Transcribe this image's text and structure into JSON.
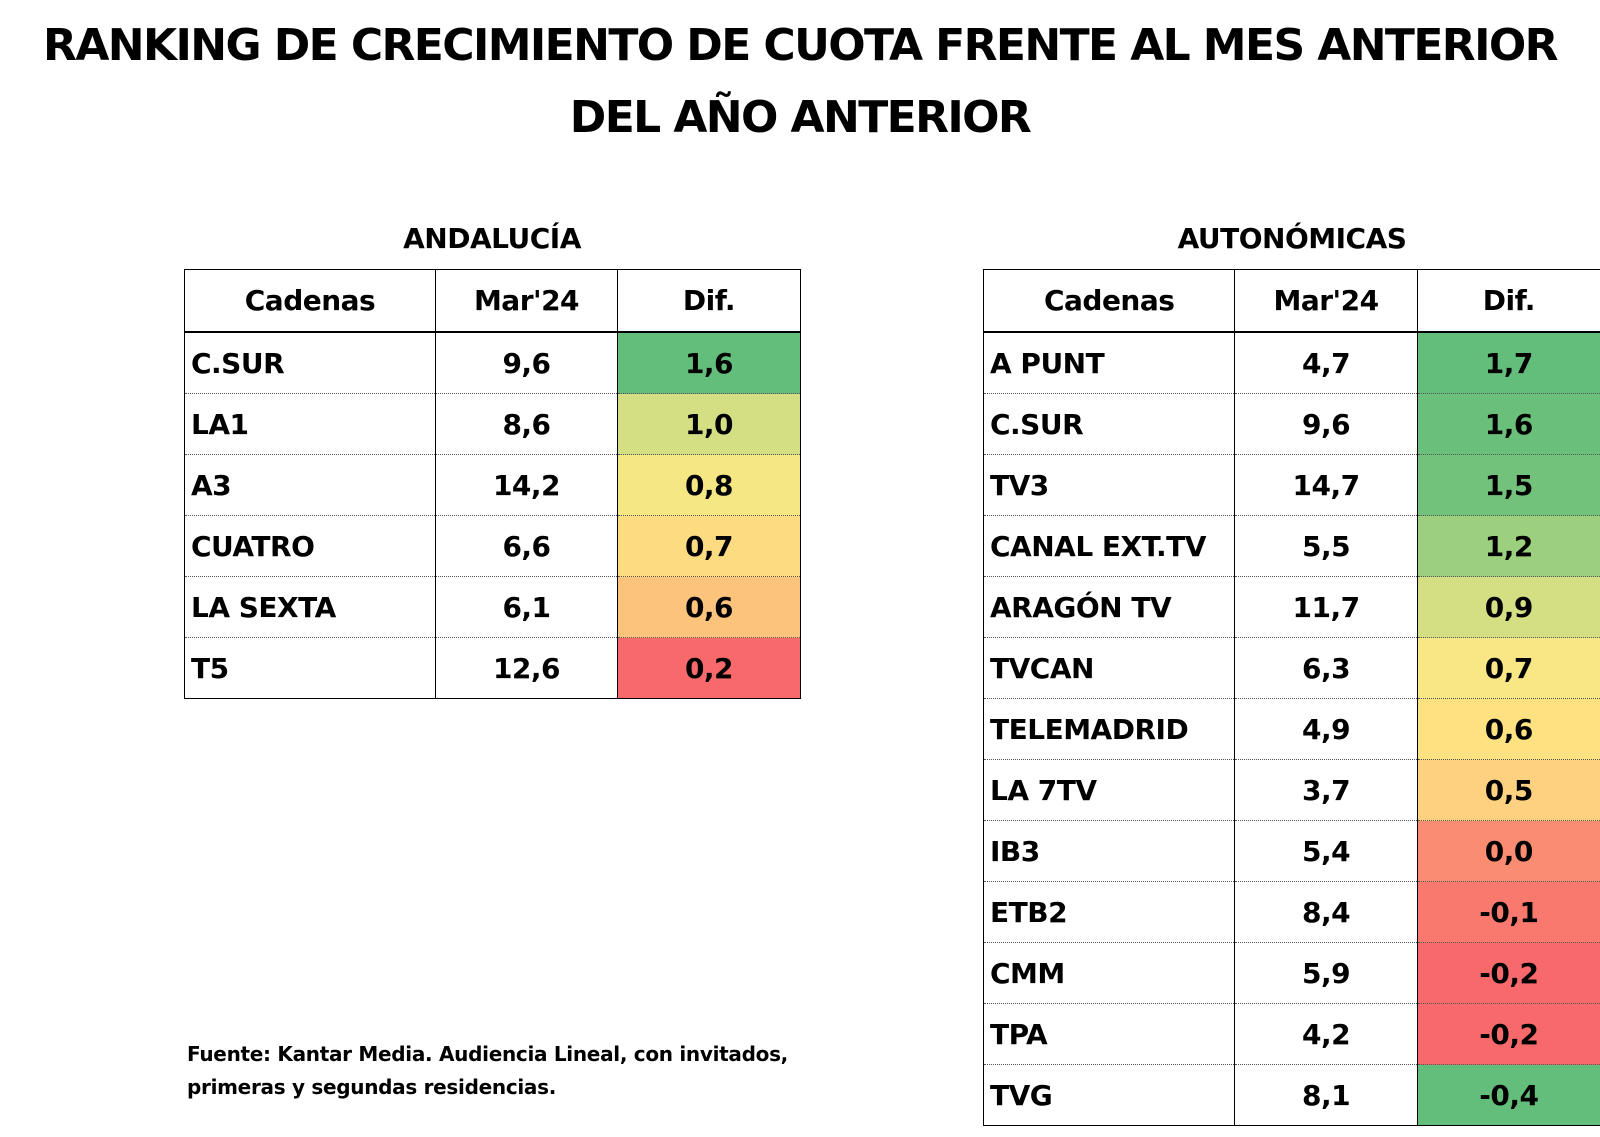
{
  "title": {
    "line1": "RANKING DE CRECIMIENTO DE CUOTA FRENTE AL MES ANTERIOR",
    "line2": "DEL AÑO ANTERIOR"
  },
  "headers": {
    "cadenas": "Cadenas",
    "period": "Mar'24",
    "dif": "Dif."
  },
  "andalucia": {
    "title": "ANDALUCÍA",
    "rows": [
      {
        "cadena": "C.SUR",
        "mar24": "9,6",
        "dif": "1,6",
        "color": "#63be7b"
      },
      {
        "cadena": "LA1",
        "mar24": "8,6",
        "dif": "1,0",
        "color": "#d3df82"
      },
      {
        "cadena": "A3",
        "mar24": "14,2",
        "dif": "0,8",
        "color": "#f5e784"
      },
      {
        "cadena": "CUATRO",
        "mar24": "6,6",
        "dif": "0,7",
        "color": "#fddb80"
      },
      {
        "cadena": "LA SEXTA",
        "mar24": "6,1",
        "dif": "0,6",
        "color": "#fcc37c"
      },
      {
        "cadena": "T5",
        "mar24": "12,6",
        "dif": "0,2",
        "color": "#f8696b"
      }
    ]
  },
  "autonomicas": {
    "title": "AUTONÓMICAS",
    "rows": [
      {
        "cadena": "A PUNT",
        "mar24": "4,7",
        "dif": "1,7",
        "color": "#63be7b"
      },
      {
        "cadena": "C.SUR",
        "mar24": "9,6",
        "dif": "1,6",
        "color": "#6ac07b"
      },
      {
        "cadena": "TV3",
        "mar24": "14,7",
        "dif": "1,5",
        "color": "#72c27c"
      },
      {
        "cadena": "CANAL EXT.TV",
        "mar24": "5,5",
        "dif": "1,2",
        "color": "#9ccf7e"
      },
      {
        "cadena": "ARAGÓN TV",
        "mar24": "11,7",
        "dif": "0,9",
        "color": "#d3df82"
      },
      {
        "cadena": "TVCAN",
        "mar24": "6,3",
        "dif": "0,7",
        "color": "#f8e784"
      },
      {
        "cadena": "TELEMADRID",
        "mar24": "4,9",
        "dif": "0,6",
        "color": "#fee282"
      },
      {
        "cadena": "LA 7TV",
        "mar24": "3,7",
        "dif": "0,5",
        "color": "#fdd17f"
      },
      {
        "cadena": "IB3",
        "mar24": "5,4",
        "dif": "0,0",
        "color": "#fa8c72"
      },
      {
        "cadena": "ETB2",
        "mar24": "8,4",
        "dif": "-0,1",
        "color": "#f9796e"
      },
      {
        "cadena": "CMM",
        "mar24": "5,9",
        "dif": "-0,2",
        "color": "#f8696b"
      },
      {
        "cadena": "TPA",
        "mar24": "4,2",
        "dif": "-0,2",
        "color": "#f8696b"
      },
      {
        "cadena": "TVG",
        "mar24": "8,1",
        "dif": "-0,4",
        "color": "#63be7b"
      }
    ]
  },
  "source": {
    "line1": "Fuente: Kantar Media. Audiencia Lineal, con invitados,",
    "line2": "primeras y segundas residencias."
  }
}
